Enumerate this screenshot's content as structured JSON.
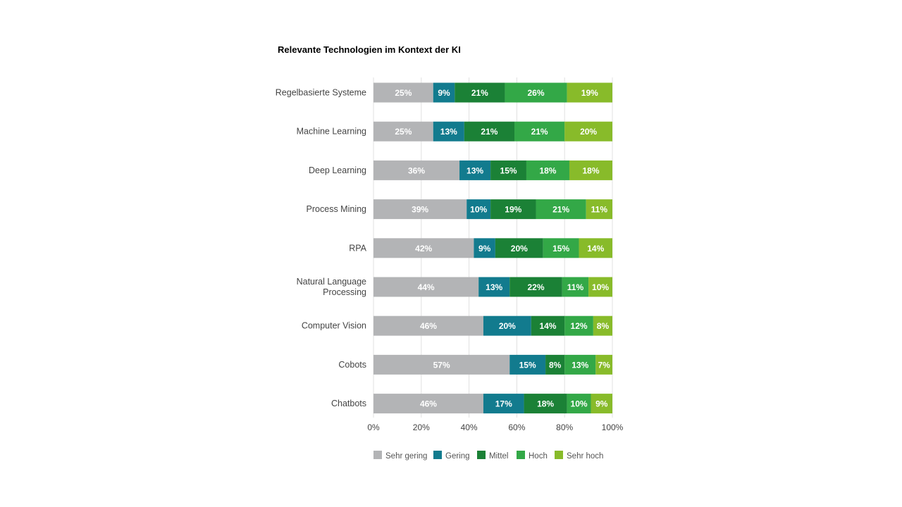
{
  "chart_data": {
    "type": "bar",
    "orientation": "horizontal",
    "stacked": true,
    "title": "Relevante Technologien im Kontext der KI",
    "categories": [
      "Regelbasierte Systeme",
      "Machine Learning",
      "Deep Learning",
      "Process Mining",
      "RPA",
      "Natural Language Processing",
      "Computer Vision",
      "Cobots",
      "Chatbots"
    ],
    "series": [
      {
        "name": "Sehr gering",
        "color": "#b3b4b6",
        "values": [
          25,
          25,
          36,
          39,
          42,
          44,
          46,
          57,
          46
        ]
      },
      {
        "name": "Gering",
        "color": "#127b8e",
        "values": [
          9,
          13,
          13,
          10,
          9,
          13,
          20,
          15,
          17
        ]
      },
      {
        "name": "Mittel",
        "color": "#1b8136",
        "values": [
          21,
          21,
          15,
          19,
          20,
          22,
          14,
          8,
          18
        ]
      },
      {
        "name": "Hoch",
        "color": "#33a847",
        "values": [
          26,
          21,
          18,
          21,
          15,
          11,
          12,
          13,
          10
        ]
      },
      {
        "name": "Sehr hoch",
        "color": "#88bb2a",
        "values": [
          19,
          20,
          18,
          11,
          14,
          10,
          8,
          7,
          9
        ]
      }
    ],
    "xlim": [
      0,
      100
    ],
    "xticks": [
      "0%",
      "20%",
      "40%",
      "60%",
      "80%",
      "100%"
    ],
    "value_suffix": "%",
    "grid": true,
    "legend_position": "bottom"
  }
}
